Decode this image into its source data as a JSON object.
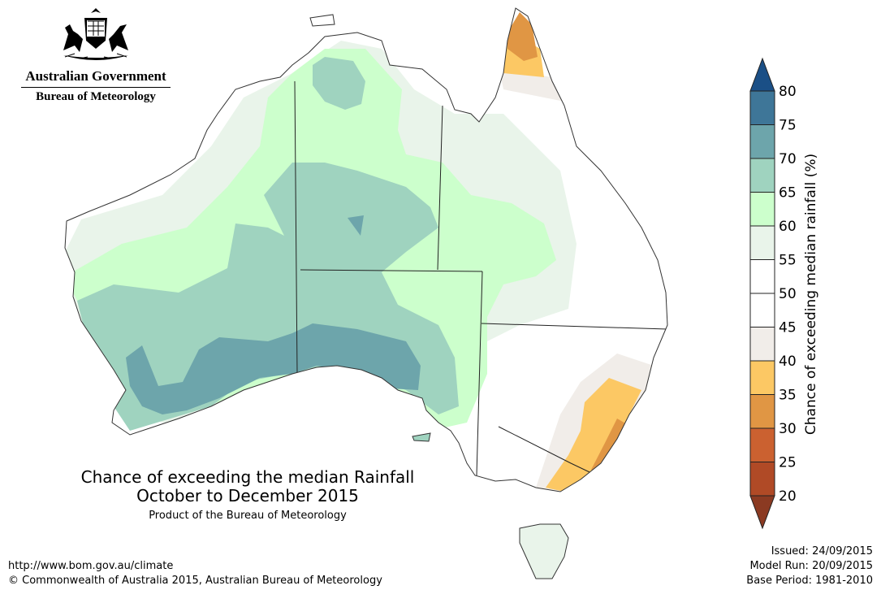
{
  "header": {
    "government": "Australian Government",
    "bureau": "Bureau of Meteorology",
    "crest_icon": "commonwealth-coat-of-arms-icon"
  },
  "title": {
    "line1": "Chance of exceeding the median Rainfall",
    "line2": "October to December 2015",
    "product": "Product of the Bureau of Meteorology"
  },
  "footer": {
    "url": "http://www.bom.gov.au/climate",
    "copyright": "© Commonwealth of Australia 2015, Australian Bureau of Meteorology"
  },
  "meta": {
    "issued": "Issued: 24/09/2015",
    "model_run": "Model Run: 20/09/2015",
    "base_period": "Base Period: 1981-2010"
  },
  "legend": {
    "label": "Chance of exceeding median rainfall (%)",
    "ticks": [
      "20",
      "25",
      "30",
      "35",
      "40",
      "45",
      "50",
      "55",
      "60",
      "65",
      "70",
      "75",
      "80"
    ],
    "bins": [
      {
        "range": "<20",
        "color": "#8b3a22"
      },
      {
        "range": "20-25",
        "color": "#b04a26"
      },
      {
        "range": "25-30",
        "color": "#cb6130"
      },
      {
        "range": "30-35",
        "color": "#e09644"
      },
      {
        "range": "35-40",
        "color": "#fcc864"
      },
      {
        "range": "40-45",
        "color": "#f1ede9"
      },
      {
        "range": "45-50",
        "color": "#ffffff"
      },
      {
        "range": "50-55",
        "color": "#ffffff"
      },
      {
        "range": "55-60",
        "color": "#e9f4ea"
      },
      {
        "range": "60-65",
        "color": "#ccffcc"
      },
      {
        "range": "65-70",
        "color": "#9fd3bf"
      },
      {
        "range": "70-75",
        "color": "#6da5ab"
      },
      {
        "range": "75-80",
        "color": "#3e7698"
      },
      {
        "range": ">80",
        "color": "#1a4f86"
      }
    ]
  }
}
